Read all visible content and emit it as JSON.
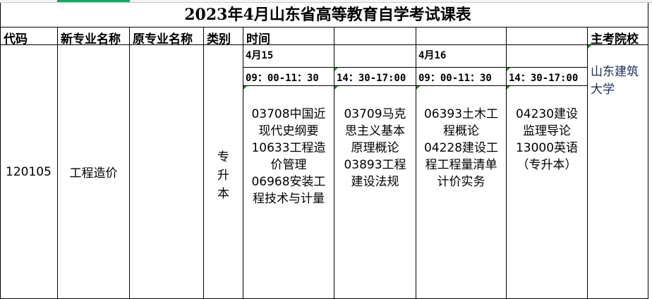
{
  "title": "2023年4月山东省高等教育自学考试课表",
  "headers": {
    "code": "代码",
    "new_major": "新专业名称",
    "old_major": "原专业名称",
    "category": "类别",
    "time": "时间",
    "school": "主考院校"
  },
  "dates": [
    "4月15",
    "4月16"
  ],
  "times": [
    "09：00-11：30",
    "14：30-17:00",
    "09：00-11：30",
    "14：30-17:00"
  ],
  "row": {
    "code": "120105",
    "new_major": "工程造价",
    "old_major": "",
    "category": "专升本",
    "courses": [
      [
        "03708中国近现代史纲要",
        "10633工程造价管理",
        "06968安装工程技术与计量"
      ],
      [
        "03709马克思主义基本原理概论",
        "03893工程建设法规"
      ],
      [
        "06393土木工程概论",
        "04228建设工程工程量清单计价实务"
      ],
      [
        "04230建设监理导论",
        "13000英语（专升本）"
      ]
    ],
    "school": "山东建筑大学"
  },
  "colors": {
    "selection": "#21a366",
    "school_text": "#1f2d5a",
    "comment_marker": "#1a8a1a"
  }
}
